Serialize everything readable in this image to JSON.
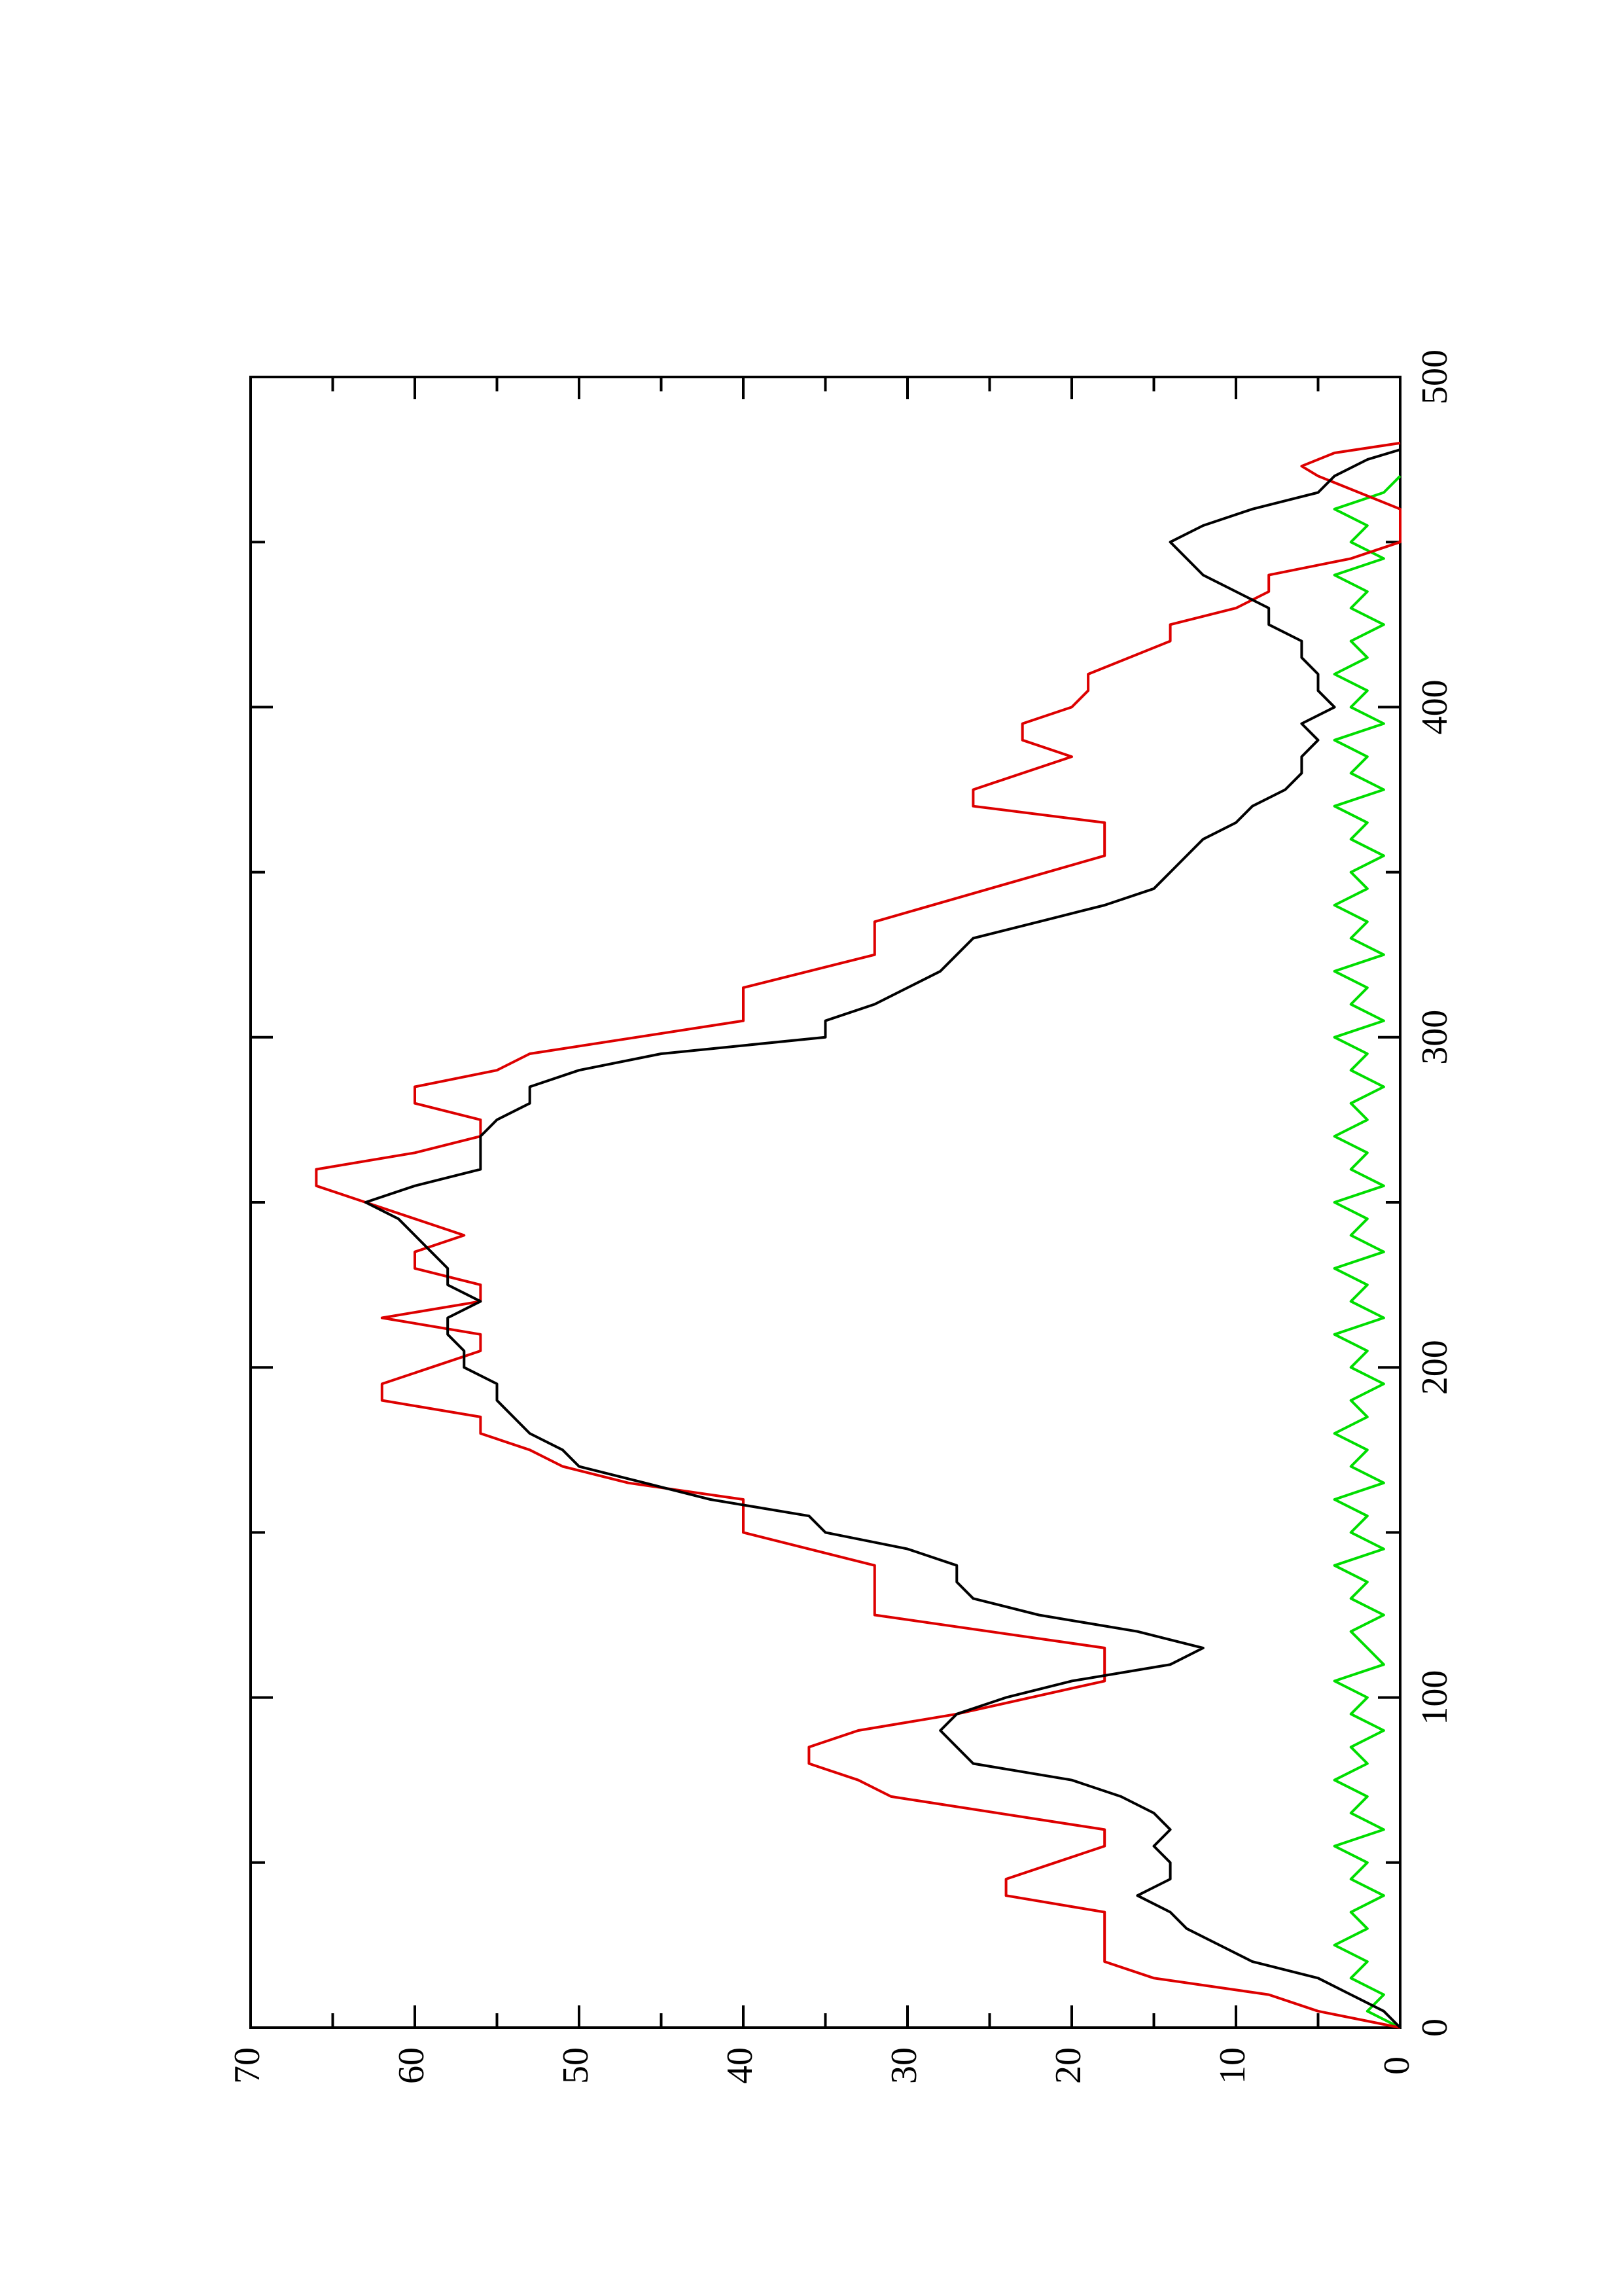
{
  "chart_data": {
    "type": "line",
    "orientation": "rotated-90-ccw",
    "title": "",
    "xlabel": "",
    "ylabel": "",
    "xlim": [
      0,
      500
    ],
    "ylim": [
      0,
      70
    ],
    "x_ticks": [
      0,
      100,
      200,
      300,
      400,
      500
    ],
    "x_minor_ticks": [
      50,
      150,
      250,
      350,
      450
    ],
    "y_ticks": [
      0,
      10,
      20,
      30,
      40,
      50,
      60,
      70
    ],
    "y_minor_ticks": [
      5,
      15,
      25,
      35,
      45,
      55,
      65
    ],
    "grid": false,
    "legend": "none",
    "series": [
      {
        "color": "#dd0000",
        "style": "step",
        "points": [
          [
            0,
            0
          ],
          [
            5,
            5
          ],
          [
            10,
            8
          ],
          [
            15,
            15
          ],
          [
            20,
            18
          ],
          [
            35,
            18
          ],
          [
            40,
            24
          ],
          [
            45,
            24
          ],
          [
            50,
            21
          ],
          [
            55,
            18
          ],
          [
            60,
            18
          ],
          [
            70,
            31
          ],
          [
            75,
            33
          ],
          [
            80,
            36
          ],
          [
            85,
            36
          ],
          [
            90,
            33
          ],
          [
            95,
            27
          ],
          [
            105,
            18
          ],
          [
            115,
            18
          ],
          [
            125,
            32
          ],
          [
            140,
            32
          ],
          [
            150,
            40
          ],
          [
            160,
            40
          ],
          [
            165,
            47
          ],
          [
            170,
            51
          ],
          [
            175,
            53
          ],
          [
            180,
            56
          ],
          [
            185,
            56
          ],
          [
            190,
            62
          ],
          [
            195,
            62
          ],
          [
            200,
            59
          ],
          [
            205,
            56
          ],
          [
            210,
            56
          ],
          [
            215,
            62
          ],
          [
            220,
            56
          ],
          [
            225,
            56
          ],
          [
            230,
            60
          ],
          [
            235,
            60
          ],
          [
            240,
            57
          ],
          [
            245,
            60
          ],
          [
            250,
            63
          ],
          [
            255,
            66
          ],
          [
            260,
            66
          ],
          [
            265,
            60
          ],
          [
            270,
            56
          ],
          [
            275,
            56
          ],
          [
            280,
            60
          ],
          [
            285,
            60
          ],
          [
            290,
            55
          ],
          [
            295,
            53
          ],
          [
            305,
            40
          ],
          [
            315,
            40
          ],
          [
            325,
            32
          ],
          [
            335,
            32
          ],
          [
            345,
            25
          ],
          [
            355,
            18
          ],
          [
            365,
            18
          ],
          [
            370,
            26
          ],
          [
            375,
            26
          ],
          [
            385,
            20
          ],
          [
            390,
            23
          ],
          [
            395,
            23
          ],
          [
            400,
            20
          ],
          [
            405,
            19
          ],
          [
            410,
            19
          ],
          [
            420,
            14
          ],
          [
            425,
            14
          ],
          [
            430,
            10
          ],
          [
            435,
            8
          ],
          [
            440,
            8
          ],
          [
            445,
            3
          ],
          [
            450,
            0
          ],
          [
            460,
            0
          ],
          [
            470,
            5
          ],
          [
            473,
            6
          ],
          [
            477,
            4
          ],
          [
            480,
            0
          ]
        ]
      },
      {
        "color": "#000000",
        "style": "line",
        "points": [
          [
            0,
            0
          ],
          [
            5,
            1
          ],
          [
            10,
            3
          ],
          [
            15,
            5
          ],
          [
            20,
            9
          ],
          [
            25,
            11
          ],
          [
            30,
            13
          ],
          [
            35,
            14
          ],
          [
            40,
            16
          ],
          [
            45,
            14
          ],
          [
            50,
            14
          ],
          [
            55,
            15
          ],
          [
            60,
            14
          ],
          [
            65,
            15
          ],
          [
            70,
            17
          ],
          [
            75,
            20
          ],
          [
            80,
            26
          ],
          [
            85,
            27
          ],
          [
            90,
            28
          ],
          [
            95,
            27
          ],
          [
            100,
            24
          ],
          [
            105,
            20
          ],
          [
            110,
            14
          ],
          [
            115,
            12
          ],
          [
            120,
            16
          ],
          [
            125,
            22
          ],
          [
            130,
            26
          ],
          [
            135,
            27
          ],
          [
            140,
            27
          ],
          [
            145,
            30
          ],
          [
            150,
            35
          ],
          [
            155,
            36
          ],
          [
            160,
            42
          ],
          [
            165,
            46
          ],
          [
            170,
            50
          ],
          [
            175,
            51
          ],
          [
            180,
            53
          ],
          [
            185,
            54
          ],
          [
            190,
            55
          ],
          [
            195,
            55
          ],
          [
            200,
            57
          ],
          [
            205,
            57
          ],
          [
            210,
            58
          ],
          [
            215,
            58
          ],
          [
            220,
            56
          ],
          [
            225,
            58
          ],
          [
            230,
            58
          ],
          [
            235,
            59
          ],
          [
            240,
            60
          ],
          [
            245,
            61
          ],
          [
            250,
            63
          ],
          [
            255,
            60
          ],
          [
            260,
            56
          ],
          [
            265,
            56
          ],
          [
            270,
            56
          ],
          [
            275,
            55
          ],
          [
            280,
            53
          ],
          [
            285,
            53
          ],
          [
            290,
            50
          ],
          [
            295,
            45
          ],
          [
            300,
            35
          ],
          [
            305,
            35
          ],
          [
            310,
            32
          ],
          [
            315,
            30
          ],
          [
            320,
            28
          ],
          [
            325,
            27
          ],
          [
            330,
            26
          ],
          [
            335,
            22
          ],
          [
            340,
            18
          ],
          [
            345,
            15
          ],
          [
            350,
            14
          ],
          [
            355,
            13
          ],
          [
            360,
            12
          ],
          [
            365,
            10
          ],
          [
            370,
            9
          ],
          [
            375,
            7
          ],
          [
            380,
            6
          ],
          [
            385,
            6
          ],
          [
            390,
            5
          ],
          [
            395,
            6
          ],
          [
            400,
            4
          ],
          [
            405,
            5
          ],
          [
            410,
            5
          ],
          [
            415,
            6
          ],
          [
            420,
            6
          ],
          [
            425,
            8
          ],
          [
            430,
            8
          ],
          [
            435,
            10
          ],
          [
            440,
            12
          ],
          [
            445,
            13
          ],
          [
            450,
            14
          ],
          [
            455,
            12
          ],
          [
            460,
            9
          ],
          [
            465,
            5
          ],
          [
            470,
            4
          ],
          [
            475,
            2
          ],
          [
            478,
            0
          ]
        ]
      },
      {
        "color": "#00dd00",
        "style": "noisy",
        "points": [
          [
            0,
            0
          ],
          [
            5,
            2
          ],
          [
            10,
            1
          ],
          [
            15,
            3
          ],
          [
            20,
            2
          ],
          [
            25,
            4
          ],
          [
            30,
            2
          ],
          [
            35,
            3
          ],
          [
            40,
            1
          ],
          [
            45,
            3
          ],
          [
            50,
            2
          ],
          [
            55,
            4
          ],
          [
            60,
            1
          ],
          [
            65,
            3
          ],
          [
            70,
            2
          ],
          [
            75,
            4
          ],
          [
            80,
            2
          ],
          [
            85,
            3
          ],
          [
            90,
            1
          ],
          [
            95,
            3
          ],
          [
            100,
            2
          ],
          [
            105,
            4
          ],
          [
            110,
            1
          ],
          [
            115,
            2
          ],
          [
            120,
            3
          ],
          [
            125,
            1
          ],
          [
            130,
            3
          ],
          [
            135,
            2
          ],
          [
            140,
            4
          ],
          [
            145,
            1
          ],
          [
            150,
            3
          ],
          [
            155,
            2
          ],
          [
            160,
            4
          ],
          [
            165,
            1
          ],
          [
            170,
            3
          ],
          [
            175,
            2
          ],
          [
            180,
            4
          ],
          [
            185,
            2
          ],
          [
            190,
            3
          ],
          [
            195,
            1
          ],
          [
            200,
            3
          ],
          [
            205,
            2
          ],
          [
            210,
            4
          ],
          [
            215,
            1
          ],
          [
            220,
            3
          ],
          [
            225,
            2
          ],
          [
            230,
            4
          ],
          [
            235,
            1
          ],
          [
            240,
            3
          ],
          [
            245,
            2
          ],
          [
            250,
            4
          ],
          [
            255,
            1
          ],
          [
            260,
            3
          ],
          [
            265,
            2
          ],
          [
            270,
            4
          ],
          [
            275,
            2
          ],
          [
            280,
            3
          ],
          [
            285,
            1
          ],
          [
            290,
            3
          ],
          [
            295,
            2
          ],
          [
            300,
            4
          ],
          [
            305,
            1
          ],
          [
            310,
            3
          ],
          [
            315,
            2
          ],
          [
            320,
            4
          ],
          [
            325,
            1
          ],
          [
            330,
            3
          ],
          [
            335,
            2
          ],
          [
            340,
            4
          ],
          [
            345,
            2
          ],
          [
            350,
            3
          ],
          [
            355,
            1
          ],
          [
            360,
            3
          ],
          [
            365,
            2
          ],
          [
            370,
            4
          ],
          [
            375,
            1
          ],
          [
            380,
            3
          ],
          [
            385,
            2
          ],
          [
            390,
            4
          ],
          [
            395,
            1
          ],
          [
            400,
            3
          ],
          [
            405,
            2
          ],
          [
            410,
            4
          ],
          [
            415,
            2
          ],
          [
            420,
            3
          ],
          [
            425,
            1
          ],
          [
            430,
            3
          ],
          [
            435,
            2
          ],
          [
            440,
            4
          ],
          [
            445,
            1
          ],
          [
            450,
            3
          ],
          [
            455,
            2
          ],
          [
            460,
            4
          ],
          [
            465,
            1
          ],
          [
            470,
            0
          ]
        ]
      }
    ]
  }
}
